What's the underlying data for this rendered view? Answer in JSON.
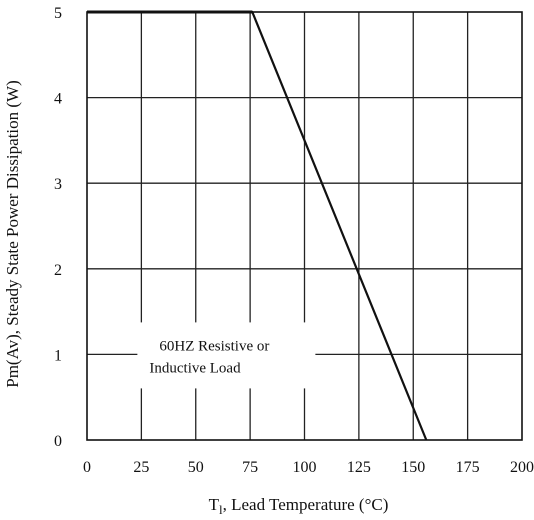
{
  "chart_data": {
    "type": "line",
    "xlabel": "T",
    "xlabel_subscript": "l",
    "xlabel_rest": ", Lead Temperature  (°C)",
    "ylabel": "Pm(Av), Steady State Power Dissipation (W)",
    "xlim": [
      0,
      200
    ],
    "ylim": [
      0,
      5
    ],
    "x_ticks": [
      "0",
      "25",
      "50",
      "75",
      "100",
      "125",
      "150",
      "175",
      "200"
    ],
    "y_ticks": [
      "0",
      "1",
      "2",
      "3",
      "4",
      "5"
    ],
    "grid": true,
    "series": [
      {
        "x": [
          0,
          76,
          156
        ],
        "y": [
          5,
          5,
          0
        ]
      }
    ],
    "annotation": {
      "line1": "60HZ  Resistive   or",
      "line2": "Inductive Load",
      "x_data": 25,
      "y_data": 1
    }
  }
}
